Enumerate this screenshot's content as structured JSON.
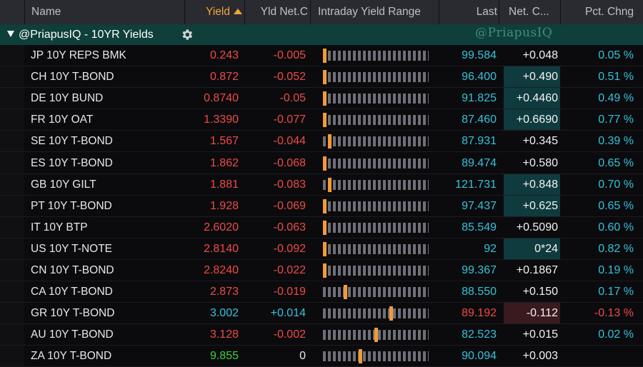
{
  "columns": {
    "name": "Name",
    "yield": "Yield",
    "yld_net_chg": "Yld Net.C",
    "range": "Intraday Yield Range",
    "last": "Last",
    "net_chg": "Net. C...",
    "pct_chg": "Pct. Chng"
  },
  "group": {
    "title": "@PriapusIQ - 10YR Yields",
    "watermark": "@PriapusIQ"
  },
  "colors": {
    "accent_sort": "#f2a33a",
    "negative": "#f04a46",
    "positive": "#34c3da",
    "group_bg": "#0f3f3a"
  },
  "rows": [
    {
      "name": "JP 10Y REPS BMK",
      "yield": "0.243",
      "yld_chg": "-0.005",
      "range": 0.0,
      "last": "99.584",
      "net_chg": "+0.048",
      "pct": "0.05 %",
      "yield_color": "red",
      "yld_chg_color": "red",
      "last_color": "cyan",
      "pct_color": "cyan",
      "hl": ""
    },
    {
      "name": "CH 10Y T-BOND",
      "yield": "0.872",
      "yld_chg": "-0.052",
      "range": 0.0,
      "last": "96.400",
      "net_chg": "+0.490",
      "pct": "0.51 %",
      "yield_color": "red",
      "yld_chg_color": "red",
      "last_color": "cyan",
      "pct_color": "cyan",
      "hl": "pos"
    },
    {
      "name": "DE 10Y BUND",
      "yield": "0.8740",
      "yld_chg": "-0.05",
      "range": 0.0,
      "last": "91.825",
      "net_chg": "+0.4460",
      "pct": "0.49 %",
      "yield_color": "red",
      "yld_chg_color": "red",
      "last_color": "cyan",
      "pct_color": "cyan",
      "hl": "pos"
    },
    {
      "name": "FR 10Y OAT",
      "yield": "1.3390",
      "yld_chg": "-0.077",
      "range": 0.0,
      "last": "87.460",
      "net_chg": "+0.6690",
      "pct": "0.77 %",
      "yield_color": "red",
      "yld_chg_color": "red",
      "last_color": "cyan",
      "pct_color": "cyan",
      "hl": "pos"
    },
    {
      "name": "SE 10Y T-BOND",
      "yield": "1.567",
      "yld_chg": "-0.044",
      "range": 0.05,
      "last": "87.931",
      "net_chg": "+0.345",
      "pct": "0.39 %",
      "yield_color": "red",
      "yld_chg_color": "red",
      "last_color": "cyan",
      "pct_color": "cyan",
      "hl": ""
    },
    {
      "name": "ES 10Y T-BOND",
      "yield": "1.862",
      "yld_chg": "-0.068",
      "range": 0.0,
      "last": "89.474",
      "net_chg": "+0.580",
      "pct": "0.65 %",
      "yield_color": "red",
      "yld_chg_color": "red",
      "last_color": "cyan",
      "pct_color": "cyan",
      "hl": ""
    },
    {
      "name": "GB 10Y GILT",
      "yield": "1.881",
      "yld_chg": "-0.083",
      "range": 0.05,
      "last": "121.731",
      "net_chg": "+0.848",
      "pct": "0.70 %",
      "yield_color": "red",
      "yld_chg_color": "red",
      "last_color": "cyan",
      "pct_color": "cyan",
      "hl": "pos"
    },
    {
      "name": "PT 10Y T-BOND",
      "yield": "1.928",
      "yld_chg": "-0.069",
      "range": 0.0,
      "last": "97.437",
      "net_chg": "+0.625",
      "pct": "0.65 %",
      "yield_color": "red",
      "yld_chg_color": "red",
      "last_color": "cyan",
      "pct_color": "cyan",
      "hl": "pos"
    },
    {
      "name": "IT 10Y BTP",
      "yield": "2.6020",
      "yld_chg": "-0.063",
      "range": 0.0,
      "last": "85.549",
      "net_chg": "+0.5090",
      "pct": "0.60 %",
      "yield_color": "red",
      "yld_chg_color": "red",
      "last_color": "cyan",
      "pct_color": "cyan",
      "hl": ""
    },
    {
      "name": "US 10Y T-NOTE",
      "yield": "2.8140",
      "yld_chg": "-0.092",
      "range": 0.0,
      "last": "92",
      "net_chg": "0*24",
      "pct": "0.82 %",
      "yield_color": "red",
      "yld_chg_color": "red",
      "last_color": "cyan",
      "pct_color": "cyan",
      "hl": "pos"
    },
    {
      "name": "CN 10Y T-BOND",
      "yield": "2.8240",
      "yld_chg": "-0.022",
      "range": 0.0,
      "last": "99.367",
      "net_chg": "+0.1867",
      "pct": "0.19 %",
      "yield_color": "red",
      "yld_chg_color": "red",
      "last_color": "cyan",
      "pct_color": "cyan",
      "hl": ""
    },
    {
      "name": "CA 10Y T-BOND",
      "yield": "2.873",
      "yld_chg": "-0.019",
      "range": 0.2,
      "last": "88.550",
      "net_chg": "+0.150",
      "pct": "0.17 %",
      "yield_color": "red",
      "yld_chg_color": "red",
      "last_color": "cyan",
      "pct_color": "cyan",
      "hl": ""
    },
    {
      "name": "GR 10Y T-BOND",
      "yield": "3.002",
      "yld_chg": "+0.014",
      "range": 0.65,
      "last": "89.192",
      "net_chg": "-0.112",
      "pct": "-0.13 %",
      "yield_color": "cyan",
      "yld_chg_color": "cyan",
      "last_color": "red",
      "pct_color": "red",
      "hl": "neg"
    },
    {
      "name": "AU 10Y T-BOND",
      "yield": "3.128",
      "yld_chg": "-0.002",
      "range": 0.5,
      "last": "82.523",
      "net_chg": "+0.015",
      "pct": "0.02 %",
      "yield_color": "red",
      "yld_chg_color": "red",
      "last_color": "cyan",
      "pct_color": "cyan",
      "hl": ""
    },
    {
      "name": "ZA 10Y T-BOND",
      "yield": "9.855",
      "yld_chg": "0",
      "range": 0.35,
      "last": "90.094",
      "net_chg": "+0.003",
      "pct": "",
      "yield_color": "green",
      "yld_chg_color": "white",
      "last_color": "cyan",
      "pct_color": "cyan",
      "hl": ""
    }
  ]
}
